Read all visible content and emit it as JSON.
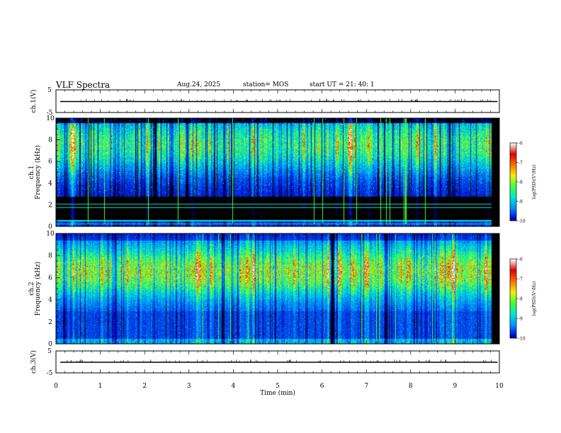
{
  "header": {
    "title": "VLF Spectra",
    "date": "Aug.24, 2025",
    "station": "station= MOS",
    "start_ut": "start  UT  =   21: 40: 1"
  },
  "chart_data": [
    {
      "type": "line",
      "panel": "ch1-waveform",
      "ylabel": "ch.1(V)",
      "ylim": [
        -5,
        5
      ],
      "yticks": [
        "5",
        "-5"
      ],
      "xlim": [
        0,
        10
      ],
      "series": [
        {
          "values": [
            0.0
          ]
        }
      ]
    },
    {
      "type": "heatmap",
      "panel": "ch1-spectrogram",
      "ylabel": "Frequency (kHz)",
      "ylabel2": "ch.1",
      "ylim": [
        0,
        10
      ],
      "yticks": [
        "0",
        "2",
        "4",
        "6",
        "8",
        "10"
      ],
      "xlim": [
        0,
        10
      ],
      "data_end_min": 9.83,
      "colorbar": {
        "label": "log(PSD)(V²/Hz)",
        "range": [
          -10,
          -6
        ],
        "ticks": [
          "-6",
          "-7",
          "-8",
          "-9",
          "-10"
        ]
      }
    },
    {
      "type": "heatmap",
      "panel": "ch2-spectrogram",
      "ylabel": "Frequency (kHz)",
      "ylabel2": "ch.2",
      "ylim": [
        0,
        10
      ],
      "yticks": [
        "0",
        "2",
        "4",
        "6",
        "8",
        "10"
      ],
      "xlim": [
        0,
        10
      ],
      "data_end_min": 9.83,
      "colorbar": {
        "label": "log(PSD)(V²/Hz)",
        "range": [
          -10,
          -6
        ],
        "ticks": [
          "-6",
          "-7",
          "-8",
          "-9",
          "-10"
        ]
      }
    },
    {
      "type": "line",
      "panel": "ch3-waveform",
      "ylabel": "ch.3(V)",
      "ylim": [
        -5,
        5
      ],
      "yticks": [
        "5",
        "-5"
      ],
      "xlim": [
        0,
        10
      ],
      "xlabel": "Time  (min)",
      "xticks": [
        "0",
        "1",
        "2",
        "3",
        "4",
        "5",
        "6",
        "7",
        "8",
        "9",
        "10"
      ],
      "series": [
        {
          "values": [
            0.0
          ]
        }
      ]
    }
  ],
  "colors": {
    "axis": "#000000",
    "colormap": [
      "#000000",
      "#0000c8",
      "#0090ff",
      "#00e8d0",
      "#40ff40",
      "#f0f000",
      "#ff7000",
      "#e00000",
      "#ffffff"
    ]
  }
}
